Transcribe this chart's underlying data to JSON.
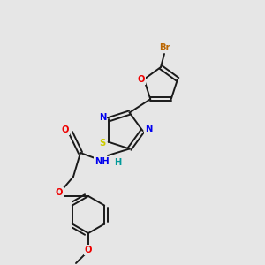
{
  "bg_color": "#e6e6e6",
  "bond_color": "#1a1a1a",
  "bond_width": 1.4,
  "dbo": 0.022,
  "atom_colors": {
    "N": "#0000ee",
    "O": "#ee0000",
    "S": "#cccc00",
    "Br": "#bb6600",
    "NH": "#0000ee",
    "H": "#009999"
  },
  "fs": 7.2
}
